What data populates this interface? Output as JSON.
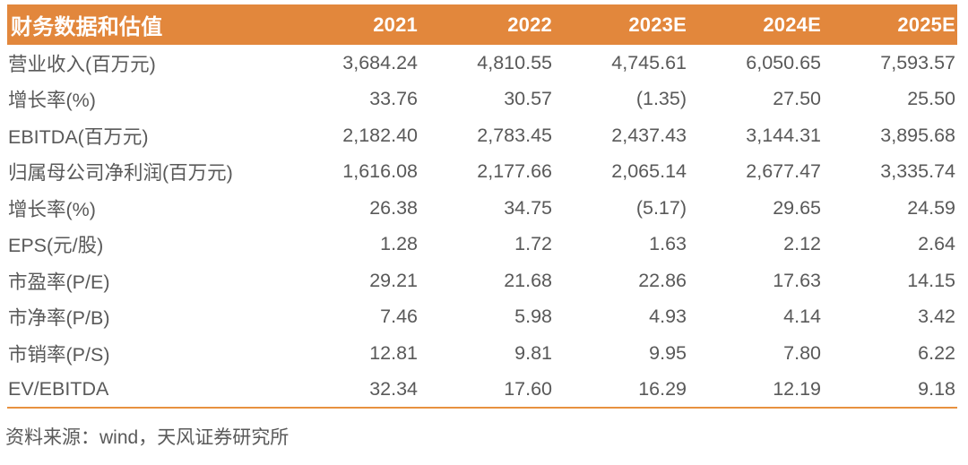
{
  "colors": {
    "header_bg": "#E2873C",
    "header_text": "#FFFFFF",
    "body_text": "#595959",
    "bottom_rule": "#E8913F"
  },
  "table": {
    "header": [
      "财务数据和估值",
      "2021",
      "2022",
      "2023E",
      "2024E",
      "2025E"
    ],
    "rows": [
      {
        "label": "营业收入(百万元)",
        "values": [
          "3,684.24",
          "4,810.55",
          "4,745.61",
          "6,050.65",
          "7,593.57"
        ]
      },
      {
        "label": "增长率(%)",
        "values": [
          "33.76",
          "30.57",
          "(1.35)",
          "27.50",
          "25.50"
        ]
      },
      {
        "label": "EBITDA(百万元)",
        "values": [
          "2,182.40",
          "2,783.45",
          "2,437.43",
          "3,144.31",
          "3,895.68"
        ]
      },
      {
        "label": "归属母公司净利润(百万元)",
        "values": [
          "1,616.08",
          "2,177.66",
          "2,065.14",
          "2,677.47",
          "3,335.74"
        ]
      },
      {
        "label": "增长率(%)",
        "values": [
          "26.38",
          "34.75",
          "(5.17)",
          "29.65",
          "24.59"
        ]
      },
      {
        "label": "EPS(元/股)",
        "values": [
          "1.28",
          "1.72",
          "1.63",
          "2.12",
          "2.64"
        ]
      },
      {
        "label": "市盈率(P/E)",
        "values": [
          "29.21",
          "21.68",
          "22.86",
          "17.63",
          "14.15"
        ]
      },
      {
        "label": "市净率(P/B)",
        "values": [
          "7.46",
          "5.98",
          "4.93",
          "4.14",
          "3.42"
        ]
      },
      {
        "label": "市销率(P/S)",
        "values": [
          "12.81",
          "9.81",
          "9.95",
          "7.80",
          "6.22"
        ]
      },
      {
        "label": "EV/EBITDA",
        "values": [
          "32.34",
          "17.60",
          "16.29",
          "12.19",
          "9.18"
        ]
      }
    ]
  },
  "footer": {
    "source": "资料来源：wind，天风证券研究所"
  }
}
